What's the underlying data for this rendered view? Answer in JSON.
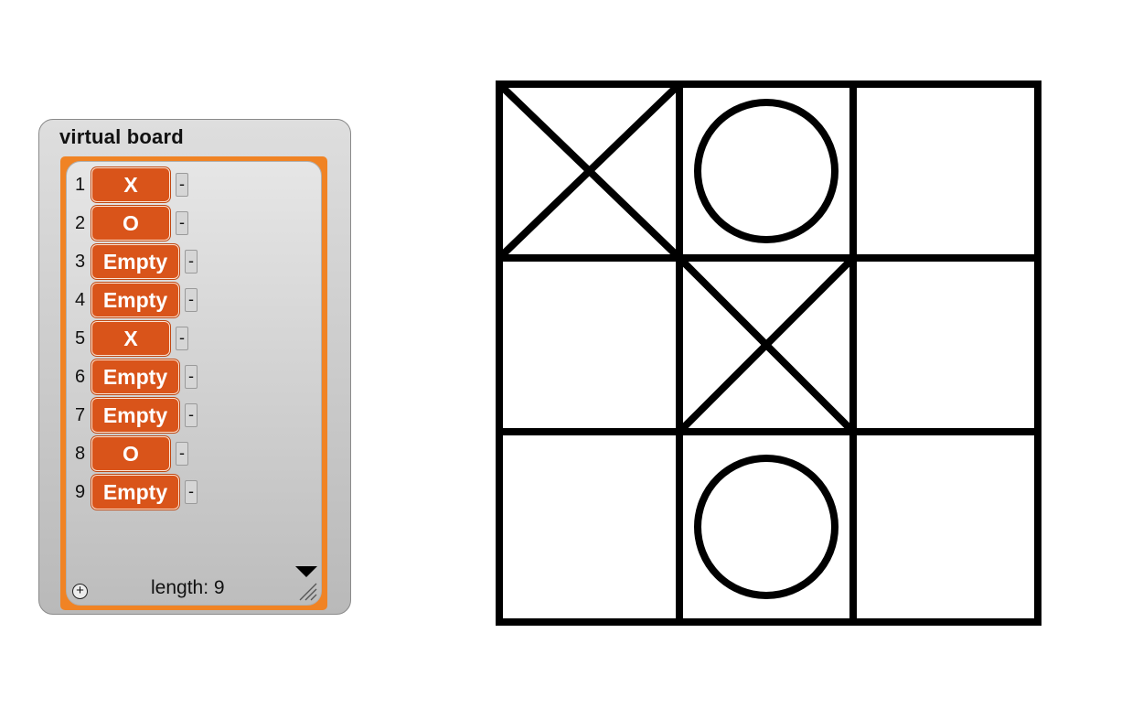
{
  "watcher": {
    "title": "virtual board",
    "items": [
      {
        "index": "1",
        "value": "X"
      },
      {
        "index": "2",
        "value": "O"
      },
      {
        "index": "3",
        "value": "Empty"
      },
      {
        "index": "4",
        "value": "Empty"
      },
      {
        "index": "5",
        "value": "X"
      },
      {
        "index": "6",
        "value": "Empty"
      },
      {
        "index": "7",
        "value": "Empty"
      },
      {
        "index": "8",
        "value": "O"
      },
      {
        "index": "9",
        "value": "Empty"
      }
    ],
    "delete_label": "-",
    "add_label": "+",
    "length_label": "length: 9"
  },
  "board": {
    "cells": [
      "X",
      "O",
      "",
      "",
      "X",
      "",
      "",
      "O",
      ""
    ]
  },
  "colors": {
    "list_frame": "#f08324",
    "cell_fill": "#d9541a",
    "cell_text": "#ffffff"
  }
}
